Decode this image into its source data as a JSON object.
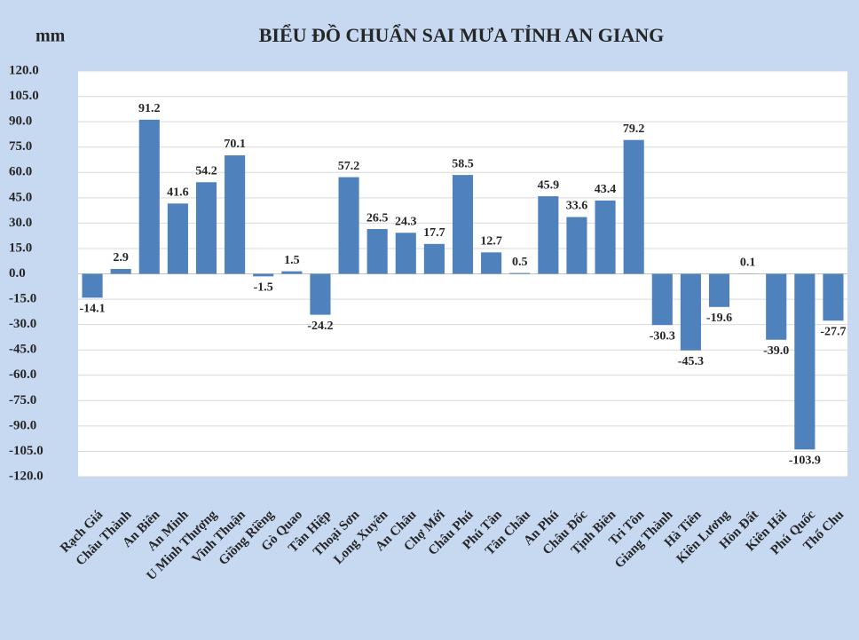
{
  "chart_data": {
    "type": "bar",
    "title": "BIỂU ĐỒ CHUẨN SAI MƯA TỈNH AN GIANG",
    "y_label": "mm",
    "categories": [
      "Rạch Giá",
      "Châu Thành",
      "An Biên",
      "An Minh",
      "U Minh Thượng",
      "Vĩnh Thuận",
      "Giồng Riềng",
      "Gò Quao",
      "Tân Hiệp",
      "Thoại Sơn",
      "Long Xuyên",
      "An Châu",
      "Chợ Mới",
      "Châu Phú",
      "Phú Tân",
      "Tân Châu",
      "An Phú",
      "Châu Đốc",
      "Tịnh Biên",
      "Tri Tôn",
      "Giang Thành",
      "Hà Tiên",
      "Kiên Lương",
      "Hòn Đất",
      "Kiên Hải",
      "Phú Quốc",
      "Thổ Chu"
    ],
    "values": [
      -14.1,
      2.9,
      91.2,
      41.6,
      54.2,
      70.1,
      -1.5,
      1.5,
      -24.2,
      57.2,
      26.5,
      24.3,
      17.7,
      58.5,
      12.7,
      0.5,
      45.9,
      33.6,
      43.4,
      79.2,
      -30.3,
      -45.3,
      -19.6,
      0.1,
      -39.0,
      -103.9,
      -27.7
    ],
    "value_labels": [
      "-14.1",
      "2.9",
      "91.2",
      "41.6",
      "54.2",
      "70.1",
      "-1.5",
      "1.5",
      "-24.2",
      "57.2",
      "26.5",
      "24.3",
      "17.7",
      "58.5",
      "12.7",
      "0.5",
      "45.9",
      "33.6",
      "43.4",
      "79.2",
      "-30.3",
      "-45.3",
      "-19.6",
      "0.1",
      "-39.0",
      "-103.9",
      "-27.7"
    ],
    "color": "#4f81bd",
    "ylim": [
      -120,
      120
    ],
    "yticks": [
      {
        "value": 120,
        "label": "120.0"
      },
      {
        "value": 105,
        "label": "105.0"
      },
      {
        "value": 90,
        "label": "90.0"
      },
      {
        "value": 75,
        "label": "75.0"
      },
      {
        "value": 60,
        "label": "60.0"
      },
      {
        "value": 45,
        "label": "45.0"
      },
      {
        "value": 30,
        "label": "30.0"
      },
      {
        "value": 15,
        "label": "15.0"
      },
      {
        "value": 0,
        "label": "0.0"
      },
      {
        "value": -15,
        "label": "-15.0"
      },
      {
        "value": -30,
        "label": "-30.0"
      },
      {
        "value": -45,
        "label": "-45.0"
      },
      {
        "value": -60,
        "label": "-60.0"
      },
      {
        "value": -75,
        "label": "-75.0"
      },
      {
        "value": -90,
        "label": "-90.0"
      },
      {
        "value": -105,
        "label": "-105.0"
      },
      {
        "value": -120,
        "label": "-120.0"
      }
    ],
    "grid": true
  }
}
